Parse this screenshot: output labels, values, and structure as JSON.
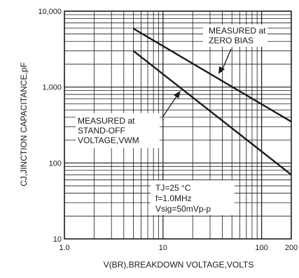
{
  "chart_data": {
    "type": "line",
    "title": "",
    "xlabel": "V(BR),BREAKDOWN VOLTAGE,VOLTS",
    "ylabel": "CJ,JINCTION CAPACITANCE,pF",
    "x_scale": "log",
    "y_scale": "log",
    "xlim": [
      1,
      200
    ],
    "ylim": [
      10,
      10000
    ],
    "grid": true,
    "x_tick_labels": [
      "1.0",
      "10",
      "100",
      "200"
    ],
    "y_tick_labels": [
      "10",
      "100",
      "1,000",
      "10,000"
    ],
    "x_tick_values": [
      1,
      10,
      100,
      200
    ],
    "y_tick_values": [
      10,
      100,
      1000,
      10000
    ],
    "series": [
      {
        "name": "MEASURED at ZERO BIAS",
        "x": [
          5,
          200
        ],
        "y": [
          5900,
          350
        ]
      },
      {
        "name": "MEASURED at STAND-OFF VOLTAGE,VWM",
        "x": [
          5,
          200
        ],
        "y": [
          3000,
          70
        ]
      }
    ],
    "annotations": {
      "zero_bias": [
        "MEASURED at",
        "ZERO BIAS"
      ],
      "standoff": [
        "MEASURED at",
        "STAND-OFF",
        "VOLTAGE,VWM"
      ],
      "conditions": [
        "TJ=25 °C",
        "f=1.0MHz",
        "Vsig=50mVp-p"
      ]
    }
  }
}
